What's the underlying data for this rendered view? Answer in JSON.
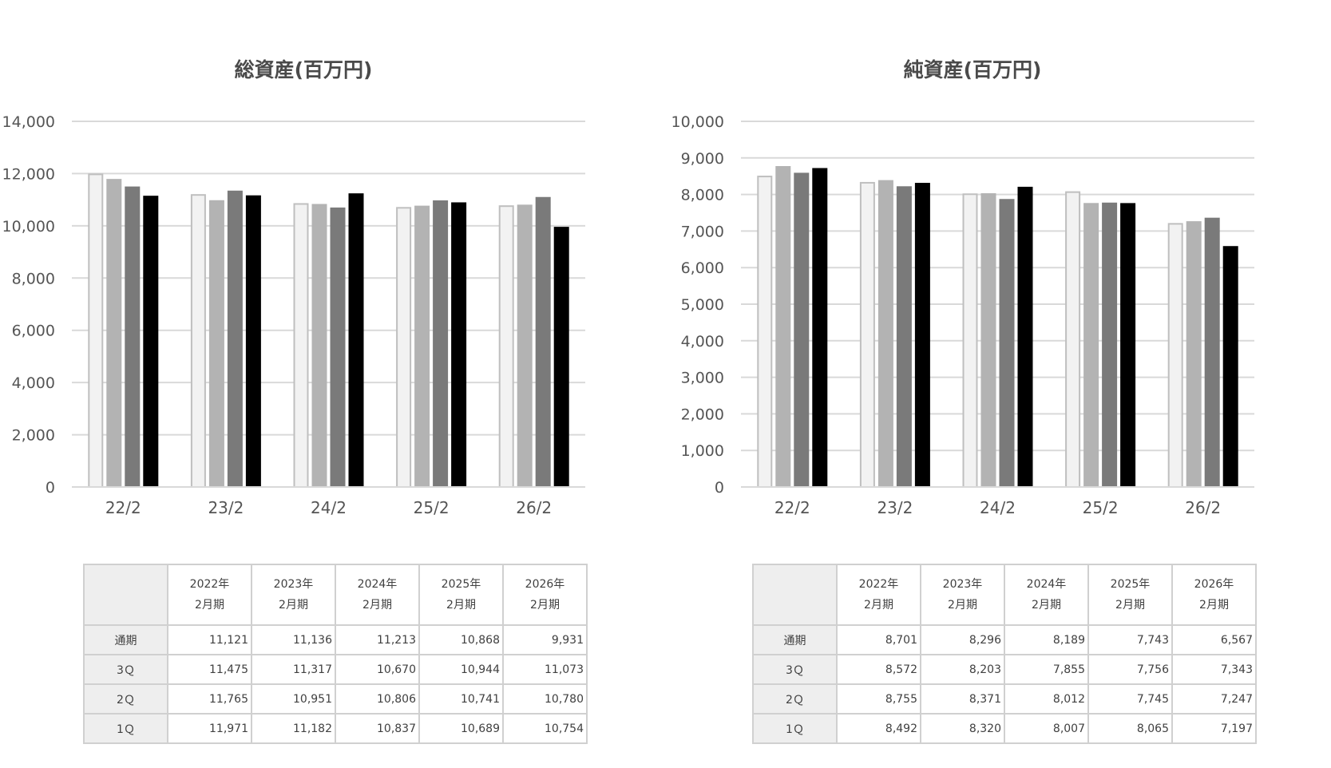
{
  "chart_data": [
    {
      "type": "bar",
      "title": "総資産(百万円)",
      "categories": [
        "22/2",
        "23/2",
        "24/2",
        "25/2",
        "26/2"
      ],
      "ylim": [
        0,
        14000
      ],
      "yticks": [
        "0",
        "2,000",
        "4,000",
        "6,000",
        "8,000",
        "10,000",
        "12,000",
        "14,000"
      ],
      "grid": true,
      "series": [
        {
          "values": [
            11971,
            11182,
            10837,
            10689,
            10754
          ],
          "color": "#f2f2f2",
          "stroke": "#bfbfbf"
        },
        {
          "values": [
            11765,
            10951,
            10806,
            10741,
            10780
          ],
          "color": "#b3b3b3",
          "stroke": "#b3b3b3"
        },
        {
          "values": [
            11475,
            11317,
            10670,
            10944,
            11073
          ],
          "color": "#7a7a7a",
          "stroke": "#7a7a7a"
        },
        {
          "values": [
            11121,
            11136,
            11213,
            10868,
            9931
          ],
          "color": "#000000",
          "stroke": "#000000"
        }
      ],
      "table": {
        "headers": [
          [
            "2022年",
            "2月期"
          ],
          [
            "2023年",
            "2月期"
          ],
          [
            "2024年",
            "2月期"
          ],
          [
            "2025年",
            "2月期"
          ],
          [
            "2026年",
            "2月期"
          ]
        ],
        "rows": [
          {
            "label": "通期",
            "cells": [
              "11,121",
              "11,136",
              "11,213",
              "10,868",
              "9,931"
            ]
          },
          {
            "label": "3Ｑ",
            "cells": [
              "11,475",
              "11,317",
              "10,670",
              "10,944",
              "11,073"
            ]
          },
          {
            "label": "2Ｑ",
            "cells": [
              "11,765",
              "10,951",
              "10,806",
              "10,741",
              "10,780"
            ]
          },
          {
            "label": "1Ｑ",
            "cells": [
              "11,971",
              "11,182",
              "10,837",
              "10,689",
              "10,754"
            ]
          }
        ]
      }
    },
    {
      "type": "bar",
      "title": "純資産(百万円)",
      "categories": [
        "22/2",
        "23/2",
        "24/2",
        "25/2",
        "26/2"
      ],
      "ylim": [
        0,
        10000
      ],
      "yticks": [
        "0",
        "1,000",
        "2,000",
        "3,000",
        "4,000",
        "5,000",
        "6,000",
        "7,000",
        "8,000",
        "9,000",
        "10,000"
      ],
      "grid": true,
      "series": [
        {
          "values": [
            8492,
            8320,
            8007,
            8065,
            7197
          ],
          "color": "#f2f2f2",
          "stroke": "#bfbfbf"
        },
        {
          "values": [
            8755,
            8371,
            8012,
            7745,
            7247
          ],
          "color": "#b3b3b3",
          "stroke": "#b3b3b3"
        },
        {
          "values": [
            8572,
            8203,
            7855,
            7756,
            7343
          ],
          "color": "#7a7a7a",
          "stroke": "#7a7a7a"
        },
        {
          "values": [
            8701,
            8296,
            8189,
            7743,
            6567
          ],
          "color": "#000000",
          "stroke": "#000000"
        }
      ],
      "table": {
        "headers": [
          [
            "2022年",
            "2月期"
          ],
          [
            "2023年",
            "2月期"
          ],
          [
            "2024年",
            "2月期"
          ],
          [
            "2025年",
            "2月期"
          ],
          [
            "2026年",
            "2月期"
          ]
        ],
        "rows": [
          {
            "label": "通期",
            "cells": [
              "8,701",
              "8,296",
              "8,189",
              "7,743",
              "6,567"
            ]
          },
          {
            "label": "3Ｑ",
            "cells": [
              "8,572",
              "8,203",
              "7,855",
              "7,756",
              "7,343"
            ]
          },
          {
            "label": "2Ｑ",
            "cells": [
              "8,755",
              "8,371",
              "8,012",
              "7,745",
              "7,247"
            ]
          },
          {
            "label": "1Ｑ",
            "cells": [
              "8,492",
              "8,320",
              "8,007",
              "8,065",
              "7,197"
            ]
          }
        ]
      }
    }
  ]
}
